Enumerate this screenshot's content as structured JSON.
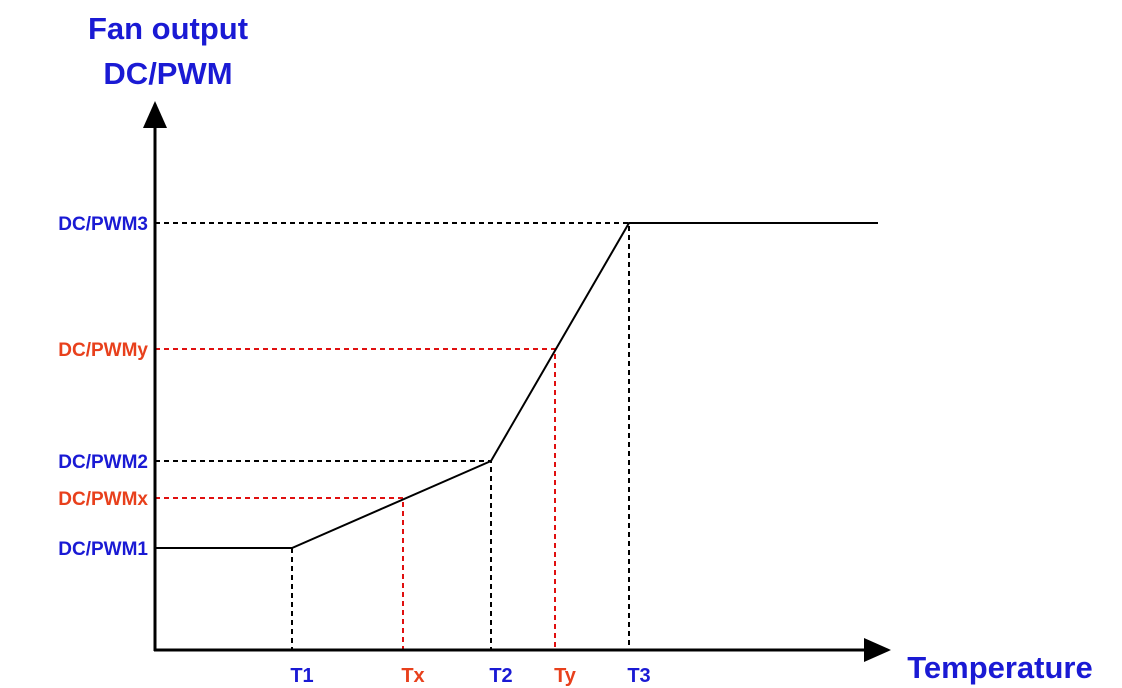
{
  "y_axis_title": [
    "Fan output",
    "DC/PWM"
  ],
  "x_axis_title": "Temperature",
  "y_labels": [
    "DC/PWM3",
    "DC/PWMy",
    "DC/PWM2",
    "DC/PWMx",
    "DC/PWM1"
  ],
  "x_labels": [
    "T1",
    "Tx",
    "T2",
    "Ty",
    "T3"
  ]
}
